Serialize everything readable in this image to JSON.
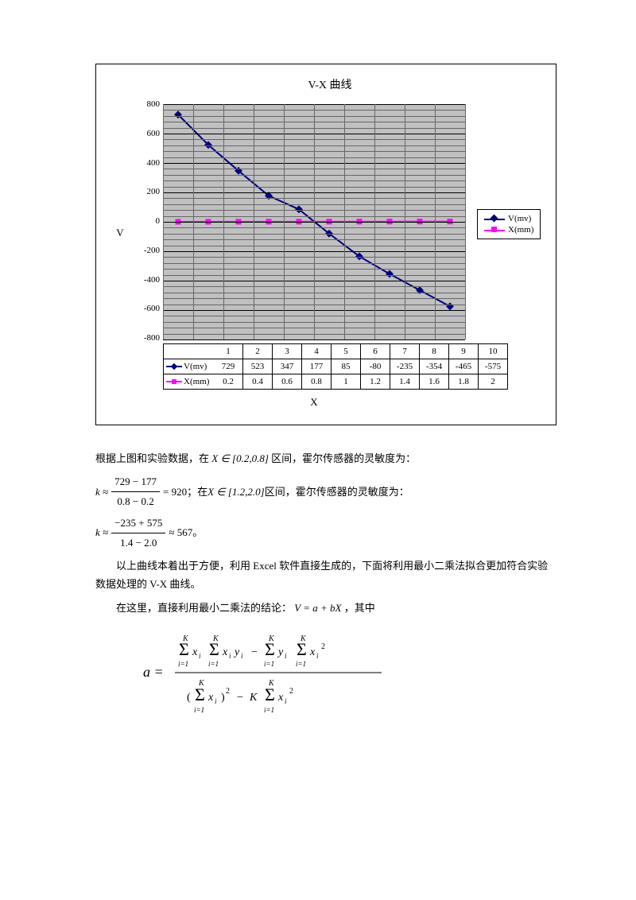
{
  "chart": {
    "title": "V-X 曲线",
    "y_axis_label": "V",
    "x_axis_label": "X",
    "background_color": "#c0c0c0",
    "grid_color": "#808080",
    "ylim": [
      -800,
      800
    ],
    "ytick_step": 200,
    "y_ticks": [
      "800",
      "600",
      "400",
      "200",
      "0",
      "-200",
      "-400",
      "-600",
      "-800"
    ],
    "x_categories": [
      "1",
      "2",
      "3",
      "4",
      "5",
      "6",
      "7",
      "8",
      "9",
      "10"
    ],
    "series": [
      {
        "name": "V(mv)",
        "color": "#000080",
        "marker": "diamond",
        "values": [
          729,
          523,
          347,
          177,
          85,
          -80,
          -235,
          -354,
          -465,
          -575
        ]
      },
      {
        "name": "X(mm)",
        "color": "#ff00ff",
        "marker": "square",
        "values": [
          0.2,
          0.4,
          0.6,
          0.8,
          1,
          1.2,
          1.4,
          1.6,
          1.8,
          2
        ]
      }
    ],
    "table_rows": [
      {
        "label": "V(mv)",
        "cells": [
          "729",
          "523",
          "347",
          "177",
          "85",
          "-80",
          "-235",
          "-354",
          "-465",
          "-575"
        ]
      },
      {
        "label": "X(mm)",
        "cells": [
          "0.2",
          "0.4",
          "0.6",
          "0.8",
          "1",
          "1.2",
          "1.4",
          "1.6",
          "1.8",
          "2"
        ]
      }
    ]
  },
  "text": {
    "p1_a": "根据上图和实验数据，在",
    "p1_b": "X ∈ [0.2,0.8]",
    "p1_c": "区间，霍尔传感器的灵敏度为：",
    "eq1_a": "k ≈",
    "eq1_num": "729 − 177",
    "eq1_den": "0.8 − 0.2",
    "eq1_b": "= 920",
    "p2_a": "；在",
    "p2_b": "X ∈ [1.2,2.0]",
    "p2_c": "区间，霍尔传感器的灵敏度为：",
    "eq2_a": "k ≈",
    "eq2_num": "−235 + 575",
    "eq2_den": "1.4 − 2.0",
    "eq2_b": "≈ 567",
    "eq2_c": "。",
    "p3": "以上曲线本着出于方便，利用 Excel 软件直接生成的，下面将利用最小二乘法拟合更加符合实验数据处理的 V-X 曲线。",
    "p4_a": "在这里，直接利用最小二乘法的结论：",
    "p4_b": "V = a + bX",
    "p4_c": "，其中",
    "formula": {
      "lhs": "a =",
      "K": "K",
      "sum_lower": "i=1",
      "x_i": "x",
      "y_i": "y",
      "sub_i": "i"
    }
  }
}
